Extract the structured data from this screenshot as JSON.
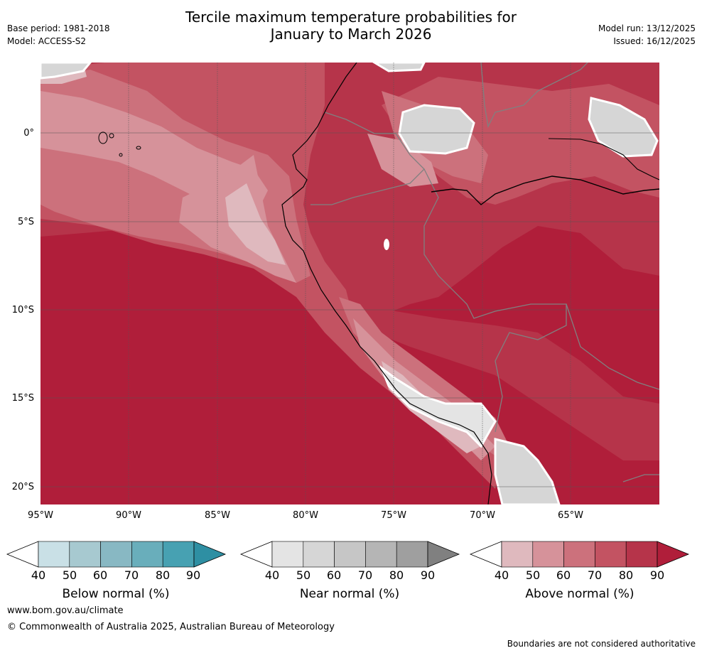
{
  "title_line1": "Tercile maximum temperature probabilities for",
  "title_line2": "January to March 2026",
  "base_period": "Base period: 1981-2018",
  "model": "Model: ACCESS-S2",
  "model_run": "Model run: 13/12/2025",
  "issued": "Issued: 16/12/2025",
  "lat_ticks": [
    "0°",
    "5°S",
    "10°S",
    "15°S",
    "20°S"
  ],
  "lon_ticks": [
    "95°W",
    "90°W",
    "85°W",
    "80°W",
    "75°W",
    "70°W",
    "65°W"
  ],
  "colorbars": [
    {
      "label": "Below normal (%)",
      "ticks": [
        "40",
        "50",
        "60",
        "70",
        "80",
        "90"
      ],
      "colors": [
        "#c9e0e6",
        "#a7c9d0",
        "#88b8c3",
        "#69aebb",
        "#47a1b2",
        "#2e8fa3"
      ]
    },
    {
      "label": "Near normal (%)",
      "ticks": [
        "40",
        "50",
        "60",
        "70",
        "80",
        "90"
      ],
      "colors": [
        "#e4e4e4",
        "#d6d6d6",
        "#c6c6c6",
        "#b5b5b5",
        "#9f9f9f",
        "#808080"
      ]
    },
    {
      "label": "Above normal (%)",
      "ticks": [
        "40",
        "50",
        "60",
        "70",
        "80",
        "90"
      ],
      "colors": [
        "#dfb9be",
        "#d6929a",
        "#cc717c",
        "#c35362",
        "#b6344a",
        "#b01e3a"
      ]
    }
  ],
  "footer_url": "www.bom.gov.au/climate",
  "copyright": "© Commonwealth of Australia 2025, Australian Bureau of Meteorology",
  "disclaimer": "Boundaries are not considered authoritative"
}
